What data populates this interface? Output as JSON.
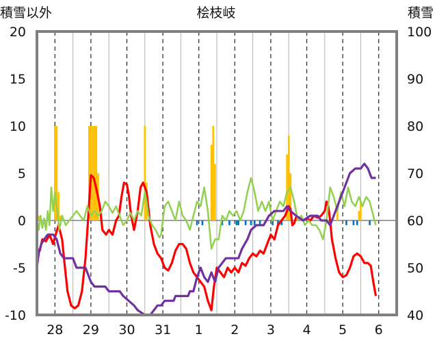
{
  "chart_data": {
    "type": "line",
    "title": "桧枝岐",
    "ylabel_left": "積雪以外",
    "ylabel_right": "積雪",
    "ylim_left": [
      -10,
      20
    ],
    "ylim_right": [
      40,
      100
    ],
    "yticks_left": [
      "20",
      "15",
      "10",
      "5",
      "0",
      "-5",
      "-10"
    ],
    "yticks_right": [
      "100",
      "90",
      "80",
      "70",
      "60",
      "50",
      "40"
    ],
    "x_categories": [
      "28",
      "29",
      "30",
      "31",
      "1",
      "2",
      "3",
      "4",
      "5",
      "6"
    ],
    "x_range_days": [
      0,
      10
    ],
    "series": [
      {
        "id": "red",
        "color": "#ff0000",
        "axis": "left",
        "points": [
          [
            0.0,
            -3.0
          ],
          [
            0.08,
            -3.2
          ],
          [
            0.15,
            -2.0
          ],
          [
            0.25,
            -2.2
          ],
          [
            0.35,
            -1.5
          ],
          [
            0.45,
            -2.5
          ],
          [
            0.52,
            -1.5
          ],
          [
            0.6,
            -0.5
          ],
          [
            0.7,
            -2.0
          ],
          [
            0.78,
            -5.0
          ],
          [
            0.85,
            -7.5
          ],
          [
            0.95,
            -9.0
          ],
          [
            1.05,
            -9.3
          ],
          [
            1.15,
            -9.0
          ],
          [
            1.25,
            -7.5
          ],
          [
            1.35,
            -4.0
          ],
          [
            1.42,
            0.0
          ],
          [
            1.5,
            4.8
          ],
          [
            1.58,
            4.5
          ],
          [
            1.66,
            3.2
          ],
          [
            1.75,
            1.5
          ],
          [
            1.82,
            -1.0
          ],
          [
            1.92,
            -1.5
          ],
          [
            2.0,
            -1.0
          ],
          [
            2.1,
            -1.5
          ],
          [
            2.2,
            0.0
          ],
          [
            2.28,
            0.5
          ],
          [
            2.35,
            2.5
          ],
          [
            2.42,
            4.0
          ],
          [
            2.5,
            3.8
          ],
          [
            2.55,
            2.8
          ],
          [
            2.62,
            0.5
          ],
          [
            2.7,
            -1.0
          ],
          [
            2.8,
            1.0
          ],
          [
            2.88,
            3.5
          ],
          [
            2.95,
            4.0
          ],
          [
            3.05,
            3.0
          ],
          [
            3.15,
            -0.5
          ],
          [
            3.25,
            -2.5
          ],
          [
            3.35,
            -3.5
          ],
          [
            3.45,
            -4.0
          ],
          [
            3.55,
            -5.0
          ],
          [
            3.65,
            -5.3
          ],
          [
            3.75,
            -4.5
          ],
          [
            3.85,
            -3.2
          ],
          [
            3.95,
            -2.5
          ],
          [
            4.05,
            -2.5
          ],
          [
            4.15,
            -3.0
          ],
          [
            4.25,
            -4.5
          ],
          [
            4.35,
            -5.5
          ],
          [
            4.45,
            -6.0
          ],
          [
            4.55,
            -6.5
          ],
          [
            4.65,
            -7.0
          ],
          [
            4.75,
            -8.5
          ],
          [
            4.85,
            -9.5
          ],
          [
            4.92,
            -7.0
          ],
          [
            5.0,
            -5.0
          ],
          [
            5.1,
            -5.5
          ],
          [
            5.2,
            -6.0
          ],
          [
            5.3,
            -5.0
          ],
          [
            5.4,
            -5.5
          ],
          [
            5.5,
            -5.0
          ],
          [
            5.6,
            -5.5
          ],
          [
            5.7,
            -4.5
          ],
          [
            5.8,
            -4.8
          ],
          [
            5.9,
            -4.0
          ],
          [
            6.0,
            -3.5
          ],
          [
            6.1,
            -3.8
          ],
          [
            6.2,
            -3.2
          ],
          [
            6.3,
            -3.5
          ],
          [
            6.4,
            -2.5
          ],
          [
            6.5,
            -1.5
          ],
          [
            6.6,
            -2.0
          ],
          [
            6.7,
            -0.5
          ],
          [
            6.8,
            0.0
          ],
          [
            6.9,
            0.5
          ],
          [
            7.0,
            1.5
          ],
          [
            7.05,
            1.2
          ],
          [
            7.1,
            -0.5
          ],
          [
            7.15,
            -0.3
          ],
          [
            7.2,
            0.3
          ],
          [
            7.3,
            0.3
          ],
          [
            7.4,
            0.0
          ],
          [
            7.5,
            0.2
          ],
          [
            7.6,
            0.0
          ],
          [
            7.7,
            0.5
          ],
          [
            7.8,
            0.3
          ],
          [
            7.9,
            0.5
          ],
          [
            8.0,
            1.0
          ],
          [
            8.05,
            2.0
          ],
          [
            8.1,
            1.5
          ],
          [
            8.15,
            0.0
          ],
          [
            8.2,
            -2.0
          ],
          [
            8.3,
            -4.0
          ],
          [
            8.4,
            -5.5
          ],
          [
            8.5,
            -6.0
          ],
          [
            8.6,
            -5.8
          ],
          [
            8.7,
            -5.0
          ],
          [
            8.8,
            -3.8
          ],
          [
            8.9,
            -3.5
          ],
          [
            9.0,
            -3.8
          ],
          [
            9.1,
            -4.5
          ],
          [
            9.2,
            -4.5
          ],
          [
            9.28,
            -4.8
          ],
          [
            9.35,
            -6.5
          ],
          [
            9.42,
            -8.0
          ]
        ]
      },
      {
        "id": "green",
        "color": "#92d050",
        "axis": "left",
        "points": [
          [
            0.0,
            0.0
          ],
          [
            0.05,
            -1.0
          ],
          [
            0.1,
            0.5
          ],
          [
            0.15,
            -0.8
          ],
          [
            0.2,
            0.2
          ],
          [
            0.25,
            -1.0
          ],
          [
            0.3,
            1.0
          ],
          [
            0.35,
            -0.5
          ],
          [
            0.4,
            3.5
          ],
          [
            0.45,
            1.0
          ],
          [
            0.5,
            3.0
          ],
          [
            0.55,
            1.5
          ],
          [
            0.62,
            -1.0
          ],
          [
            0.7,
            0.5
          ],
          [
            0.8,
            -0.5
          ],
          [
            0.9,
            0.0
          ],
          [
            1.0,
            0.5
          ],
          [
            1.1,
            1.0
          ],
          [
            1.2,
            0.5
          ],
          [
            1.3,
            0.0
          ],
          [
            1.4,
            1.5
          ],
          [
            1.5,
            0.5
          ],
          [
            1.6,
            1.0
          ],
          [
            1.7,
            0.5
          ],
          [
            1.8,
            1.0
          ],
          [
            1.9,
            2.0
          ],
          [
            2.0,
            1.5
          ],
          [
            2.1,
            0.8
          ],
          [
            2.2,
            1.5
          ],
          [
            2.3,
            0.5
          ],
          [
            2.4,
            -0.5
          ],
          [
            2.5,
            0.0
          ],
          [
            2.6,
            0.8
          ],
          [
            2.7,
            0.0
          ],
          [
            2.8,
            1.0
          ],
          [
            2.9,
            0.5
          ],
          [
            3.0,
            3.0
          ],
          [
            3.05,
            2.0
          ],
          [
            3.1,
            0.5
          ],
          [
            3.2,
            -0.5
          ],
          [
            3.3,
            -1.0
          ],
          [
            3.4,
            -1.8
          ],
          [
            3.45,
            -1.5
          ],
          [
            3.55,
            1.5
          ],
          [
            3.65,
            2.0
          ],
          [
            3.75,
            1.0
          ],
          [
            3.85,
            0.0
          ],
          [
            3.95,
            2.0
          ],
          [
            4.05,
            0.5
          ],
          [
            4.15,
            0.0
          ],
          [
            4.25,
            -1.0
          ],
          [
            4.35,
            0.5
          ],
          [
            4.45,
            2.0
          ],
          [
            4.55,
            1.5
          ],
          [
            4.65,
            3.5
          ],
          [
            4.75,
            1.0
          ],
          [
            4.85,
            -3.0
          ],
          [
            4.95,
            -2.0
          ],
          [
            5.05,
            -2.0
          ],
          [
            5.15,
            0.5
          ],
          [
            5.25,
            0.0
          ],
          [
            5.35,
            1.0
          ],
          [
            5.45,
            0.5
          ],
          [
            5.55,
            1.0
          ],
          [
            5.65,
            0.0
          ],
          [
            5.75,
            1.0
          ],
          [
            5.85,
            3.0
          ],
          [
            5.95,
            4.5
          ],
          [
            6.05,
            3.0
          ],
          [
            6.15,
            1.0
          ],
          [
            6.25,
            2.0
          ],
          [
            6.35,
            1.0
          ],
          [
            6.45,
            2.0
          ],
          [
            6.55,
            0.0
          ],
          [
            6.65,
            1.0
          ],
          [
            6.75,
            2.0
          ],
          [
            6.85,
            1.5
          ],
          [
            6.95,
            3.0
          ],
          [
            7.05,
            3.5
          ],
          [
            7.15,
            2.0
          ],
          [
            7.25,
            0.0
          ],
          [
            7.35,
            0.5
          ],
          [
            7.45,
            -0.5
          ],
          [
            7.55,
            0.0
          ],
          [
            7.65,
            -0.5
          ],
          [
            7.75,
            -0.5
          ],
          [
            7.85,
            -1.0
          ],
          [
            7.95,
            -2.0
          ],
          [
            8.05,
            0.0
          ],
          [
            8.15,
            3.5
          ],
          [
            8.25,
            2.5
          ],
          [
            8.35,
            1.0
          ],
          [
            8.45,
            3.0
          ],
          [
            8.55,
            1.5
          ],
          [
            8.65,
            3.5
          ],
          [
            8.75,
            2.0
          ],
          [
            8.85,
            1.5
          ],
          [
            8.95,
            2.5
          ],
          [
            9.05,
            1.5
          ],
          [
            9.15,
            2.5
          ],
          [
            9.25,
            2.0
          ],
          [
            9.35,
            0.5
          ],
          [
            9.42,
            -0.5
          ]
        ]
      },
      {
        "id": "purple",
        "color": "#7030a0",
        "axis": "right",
        "points": [
          [
            0.0,
            50.0
          ],
          [
            0.05,
            53.0
          ],
          [
            0.12,
            55.0
          ],
          [
            0.2,
            56.0
          ],
          [
            0.3,
            57.0
          ],
          [
            0.45,
            57.0
          ],
          [
            0.55,
            56.0
          ],
          [
            0.65,
            53.0
          ],
          [
            0.75,
            52.0
          ],
          [
            1.0,
            52.0
          ],
          [
            1.1,
            50.0
          ],
          [
            1.35,
            50.0
          ],
          [
            1.4,
            49.0
          ],
          [
            1.45,
            48.0
          ],
          [
            1.5,
            47.0
          ],
          [
            1.6,
            46.0
          ],
          [
            1.9,
            46.0
          ],
          [
            2.0,
            45.0
          ],
          [
            2.3,
            45.0
          ],
          [
            2.4,
            44.0
          ],
          [
            2.55,
            43.0
          ],
          [
            2.7,
            42.0
          ],
          [
            2.8,
            41.0
          ],
          [
            3.0,
            40.0
          ],
          [
            3.15,
            40.0
          ],
          [
            3.25,
            41.0
          ],
          [
            3.35,
            42.0
          ],
          [
            3.45,
            42.0
          ],
          [
            3.55,
            43.0
          ],
          [
            3.8,
            43.0
          ],
          [
            3.85,
            44.0
          ],
          [
            4.2,
            44.0
          ],
          [
            4.25,
            45.0
          ],
          [
            4.35,
            45.0
          ],
          [
            4.45,
            48.0
          ],
          [
            4.55,
            50.0
          ],
          [
            4.65,
            48.0
          ],
          [
            4.75,
            47.0
          ],
          [
            4.85,
            49.0
          ],
          [
            4.95,
            47.0
          ],
          [
            5.05,
            50.0
          ],
          [
            5.25,
            52.0
          ],
          [
            5.6,
            52.0
          ],
          [
            5.7,
            54.0
          ],
          [
            5.85,
            56.0
          ],
          [
            5.95,
            58.0
          ],
          [
            6.1,
            59.0
          ],
          [
            6.3,
            59.0
          ],
          [
            6.45,
            61.0
          ],
          [
            6.6,
            62.0
          ],
          [
            6.85,
            62.0
          ],
          [
            6.95,
            63.0
          ],
          [
            7.05,
            62.0
          ],
          [
            7.2,
            61.0
          ],
          [
            7.4,
            60.0
          ],
          [
            7.6,
            61.0
          ],
          [
            7.8,
            61.0
          ],
          [
            7.9,
            60.0
          ],
          [
            8.05,
            60.0
          ],
          [
            8.15,
            59.0
          ],
          [
            8.3,
            62.0
          ],
          [
            8.45,
            65.0
          ],
          [
            8.6,
            68.0
          ],
          [
            8.7,
            70.0
          ],
          [
            8.85,
            71.0
          ],
          [
            9.0,
            71.0
          ],
          [
            9.1,
            72.0
          ],
          [
            9.2,
            71.0
          ],
          [
            9.3,
            69.0
          ],
          [
            9.42,
            69.0
          ]
        ]
      }
    ],
    "bars_orange": {
      "color": "#ffc000",
      "axis": "left",
      "bars": [
        [
          0.0,
          0.3
        ],
        [
          0.05,
          0.5
        ],
        [
          0.5,
          10.0
        ],
        [
          0.55,
          10.0
        ],
        [
          0.6,
          3.0
        ],
        [
          0.65,
          0.5
        ],
        [
          1.45,
          10.0
        ],
        [
          1.5,
          10.0
        ],
        [
          1.55,
          10.0
        ],
        [
          1.6,
          10.0
        ],
        [
          1.65,
          10.0
        ],
        [
          1.7,
          5.0
        ],
        [
          3.0,
          10.0
        ],
        [
          3.05,
          4.0
        ],
        [
          4.85,
          8.0
        ],
        [
          4.9,
          10.0
        ],
        [
          4.95,
          6.0
        ],
        [
          6.95,
          7.0
        ],
        [
          7.0,
          9.0
        ],
        [
          7.05,
          5.0
        ],
        [
          8.35,
          1.0
        ],
        [
          8.95,
          1.0
        ],
        [
          9.0,
          2.0
        ]
      ]
    },
    "bars_blue": {
      "color": "#0070c0",
      "axis": "left",
      "bars": [
        [
          3.15,
          -0.5
        ],
        [
          4.45,
          -0.5
        ],
        [
          4.6,
          -0.5
        ],
        [
          5.15,
          -0.5
        ],
        [
          5.35,
          -0.5
        ],
        [
          5.55,
          -0.5
        ],
        [
          5.6,
          -0.5
        ],
        [
          5.8,
          -0.5
        ],
        [
          5.95,
          -0.5
        ],
        [
          6.05,
          -0.5
        ],
        [
          6.2,
          -0.5
        ],
        [
          6.55,
          -0.5
        ],
        [
          6.7,
          -0.5
        ],
        [
          6.8,
          -0.5
        ],
        [
          8.6,
          -0.5
        ],
        [
          8.8,
          -0.5
        ],
        [
          8.9,
          -0.5
        ],
        [
          9.25,
          -0.5
        ]
      ]
    },
    "grid": {
      "vertical": "dashed",
      "zero_line": true
    }
  }
}
